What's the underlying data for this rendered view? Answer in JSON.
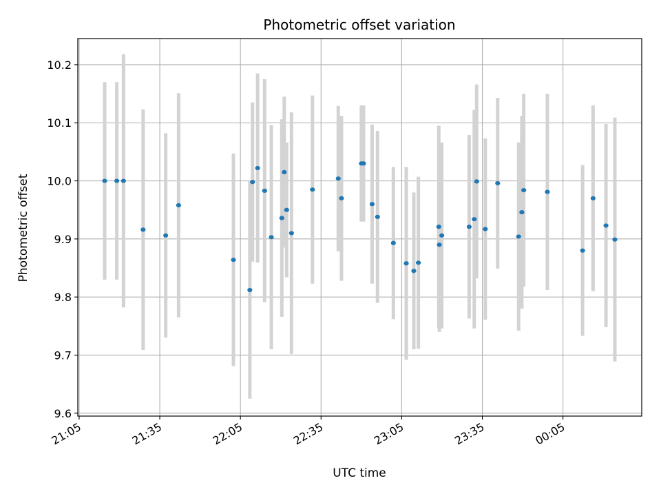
{
  "chart_data": {
    "type": "scatter",
    "title": "Photometric offset variation",
    "xlabel": "UTC time",
    "ylabel": "Photometric offset",
    "x_ticks": [
      "21:05",
      "21:35",
      "22:05",
      "22:35",
      "23:05",
      "23:35",
      "00:05"
    ],
    "y_ticks": [
      "9.6",
      "9.7",
      "9.8",
      "9.9",
      "10.0",
      "10.1",
      "10.2"
    ],
    "y_tick_values": [
      9.6,
      9.7,
      9.8,
      9.9,
      10.0,
      10.1,
      10.2
    ],
    "ylim": [
      9.595,
      10.245
    ],
    "xlim_minutes_after_2105": [
      -0.5,
      209.3
    ],
    "grid": true,
    "marker_color": "#1f77b4",
    "errorbar_color": "#d3d3d3",
    "points": [
      {
        "t": 9.5,
        "y": 10.0,
        "err": 0.17
      },
      {
        "t": 14.0,
        "y": 10.0,
        "err": 0.17
      },
      {
        "t": 16.5,
        "y": 10.0,
        "err": 0.218
      },
      {
        "t": 23.8,
        "y": 9.916,
        "err": 0.207
      },
      {
        "t": 32.2,
        "y": 9.906,
        "err": 0.176
      },
      {
        "t": 37.0,
        "y": 9.958,
        "err": 0.193
      },
      {
        "t": 57.4,
        "y": 9.864,
        "err": 0.183
      },
      {
        "t": 63.5,
        "y": 9.812,
        "err": 0.187
      },
      {
        "t": 64.5,
        "y": 9.998,
        "err": 0.137
      },
      {
        "t": 66.4,
        "y": 10.022,
        "err": 0.163
      },
      {
        "t": 69.0,
        "y": 9.983,
        "err": 0.192
      },
      {
        "t": 71.5,
        "y": 9.903,
        "err": 0.193
      },
      {
        "t": 75.4,
        "y": 9.936,
        "err": 0.17
      },
      {
        "t": 76.3,
        "y": 10.015,
        "err": 0.13
      },
      {
        "t": 77.2,
        "y": 9.95,
        "err": 0.116
      },
      {
        "t": 79.0,
        "y": 9.91,
        "err": 0.208
      },
      {
        "t": 86.8,
        "y": 9.985,
        "err": 0.162
      },
      {
        "t": 96.4,
        "y": 10.004,
        "err": 0.125
      },
      {
        "t": 97.6,
        "y": 9.97,
        "err": 0.142
      },
      {
        "t": 105.0,
        "y": 10.03,
        "err": 0.1
      },
      {
        "t": 105.8,
        "y": 10.03,
        "err": 0.1
      },
      {
        "t": 109.0,
        "y": 9.96,
        "err": 0.137
      },
      {
        "t": 111.0,
        "y": 9.938,
        "err": 0.148
      },
      {
        "t": 116.9,
        "y": 9.893,
        "err": 0.131
      },
      {
        "t": 121.7,
        "y": 9.858,
        "err": 0.166
      },
      {
        "t": 124.5,
        "y": 9.845,
        "err": 0.135
      },
      {
        "t": 126.2,
        "y": 9.859,
        "err": 0.148
      },
      {
        "t": 133.8,
        "y": 9.921,
        "err": 0.174
      },
      {
        "t": 134.0,
        "y": 9.89,
        "err": 0.15
      },
      {
        "t": 134.9,
        "y": 9.906,
        "err": 0.16
      },
      {
        "t": 145.1,
        "y": 9.921,
        "err": 0.158
      },
      {
        "t": 147.0,
        "y": 9.934,
        "err": 0.188
      },
      {
        "t": 147.9,
        "y": 9.999,
        "err": 0.167
      },
      {
        "t": 151.1,
        "y": 9.917,
        "err": 0.156
      },
      {
        "t": 155.7,
        "y": 9.996,
        "err": 0.147
      },
      {
        "t": 163.5,
        "y": 9.904,
        "err": 0.162
      },
      {
        "t": 164.7,
        "y": 9.946,
        "err": 0.166
      },
      {
        "t": 165.4,
        "y": 9.984,
        "err": 0.166
      },
      {
        "t": 174.2,
        "y": 9.981,
        "err": 0.169
      },
      {
        "t": 187.3,
        "y": 9.88,
        "err": 0.147
      },
      {
        "t": 191.2,
        "y": 9.97,
        "err": 0.16
      },
      {
        "t": 196.0,
        "y": 9.923,
        "err": 0.175
      },
      {
        "t": 199.3,
        "y": 9.899,
        "err": 0.21
      }
    ]
  }
}
